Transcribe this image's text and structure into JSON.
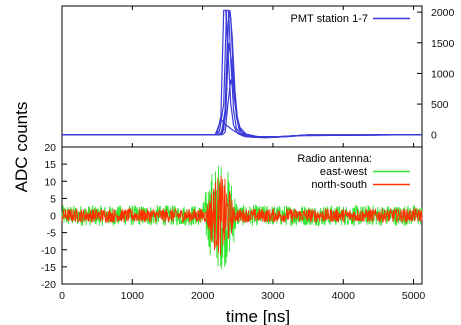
{
  "chart_data": [
    {
      "type": "line",
      "panel": "top",
      "xlabel": "time [ns]",
      "ylabel": "ADC counts",
      "xlim": [
        0,
        5120
      ],
      "ylim": [
        -200,
        2100
      ],
      "y_axis_side": "right",
      "x_ticks": [
        0,
        1000,
        2000,
        3000,
        4000,
        5000
      ],
      "y_ticks": [
        0,
        500,
        1000,
        1500,
        2000
      ],
      "y_tick_labels": [
        "0",
        "500",
        "1000",
        "1500",
        "2000"
      ],
      "legend": {
        "position": "top-right",
        "entries": [
          {
            "label": "PMT station 1-7",
            "color": "#3a3ad8"
          }
        ]
      },
      "series": [
        {
          "name": "PMT station 1-7",
          "color": "#3a3ad8",
          "traces": [
            {
              "x": [
                0,
                2170,
                2210,
                2260,
                2300,
                2330,
                2360,
                2400,
                2440,
                2500,
                2600,
                2800,
                3000,
                3300,
                3500,
                5120
              ],
              "y": [
                0,
                0,
                40,
                300,
                2030,
                2030,
                1400,
                500,
                150,
                20,
                -30,
                -45,
                -40,
                -20,
                0,
                0
              ]
            },
            {
              "x": [
                0,
                2200,
                2240,
                2300,
                2340,
                2370,
                2400,
                2440,
                2480,
                2550,
                2700,
                2900,
                3100,
                3400,
                5120
              ],
              "y": [
                0,
                0,
                60,
                500,
                2030,
                2030,
                1200,
                400,
                100,
                10,
                -40,
                -50,
                -35,
                -10,
                0
              ]
            },
            {
              "x": [
                0,
                2230,
                2270,
                2320,
                2360,
                2390,
                2420,
                2460,
                2500,
                2560,
                2700,
                2900,
                3200,
                3500,
                5120
              ],
              "y": [
                0,
                0,
                50,
                400,
                1800,
                2030,
                1600,
                700,
                200,
                30,
                -35,
                -45,
                -30,
                -5,
                0
              ]
            },
            {
              "x": [
                0,
                2260,
                2300,
                2340,
                2370,
                2400,
                2440,
                2480,
                2520,
                2600,
                2750,
                2950,
                3300,
                5120
              ],
              "y": [
                0,
                0,
                80,
                700,
                2030,
                1900,
                900,
                300,
                80,
                0,
                -40,
                -40,
                -15,
                0
              ]
            },
            {
              "x": [
                0,
                2180,
                2220,
                2260,
                2300,
                2340,
                2380,
                2420,
                2480,
                2600,
                2800,
                3100,
                3400,
                5120
              ],
              "y": [
                0,
                0,
                120,
                250,
                200,
                150,
                120,
                80,
                40,
                -10,
                -30,
                -30,
                -10,
                0
              ]
            },
            {
              "x": [
                0,
                2240,
                2280,
                2330,
                2370,
                2410,
                2450,
                2490,
                2540,
                2650,
                2850,
                3100,
                3400,
                5120
              ],
              "y": [
                0,
                0,
                30,
                350,
                1500,
                1200,
                600,
                250,
                60,
                -20,
                -40,
                -35,
                -10,
                0
              ]
            },
            {
              "x": [
                0,
                2280,
                2320,
                2360,
                2400,
                2440,
                2480,
                2530,
                2620,
                2800,
                3050,
                3400,
                5120
              ],
              "y": [
                0,
                0,
                40,
                500,
                900,
                700,
                350,
                120,
                10,
                -35,
                -40,
                -15,
                0
              ]
            }
          ]
        }
      ]
    },
    {
      "type": "line",
      "panel": "bottom",
      "xlabel": "time [ns]",
      "ylabel": "ADC counts",
      "xlim": [
        0,
        5120
      ],
      "ylim": [
        -20,
        20
      ],
      "y_axis_side": "left",
      "x_ticks": [
        0,
        1000,
        2000,
        3000,
        4000,
        5000
      ],
      "x_tick_labels": [
        "0",
        "1000",
        "2000",
        "3000",
        "4000",
        "5000"
      ],
      "y_ticks": [
        -20,
        -15,
        -10,
        -5,
        0,
        5,
        10,
        15,
        20
      ],
      "y_tick_labels": [
        "-20",
        "-15",
        "-10",
        "-5",
        "0",
        "5",
        "10",
        "15",
        "20"
      ],
      "legend": {
        "position": "top-right",
        "title": "Radio antenna:",
        "entries": [
          {
            "label": "east-west",
            "color": "#33e633"
          },
          {
            "label": "north-south",
            "color": "#ff3300"
          }
        ]
      },
      "series": [
        {
          "name": "east-west",
          "color": "#33e633",
          "noise_amplitude": 3,
          "burst": {
            "x_range": [
              2000,
              2500
            ],
            "peak_amplitude": 16
          }
        },
        {
          "name": "north-south",
          "color": "#ff3300",
          "noise_amplitude": 2,
          "burst": {
            "x_range": [
              2050,
              2450
            ],
            "peak_amplitude": 12
          }
        }
      ]
    }
  ]
}
